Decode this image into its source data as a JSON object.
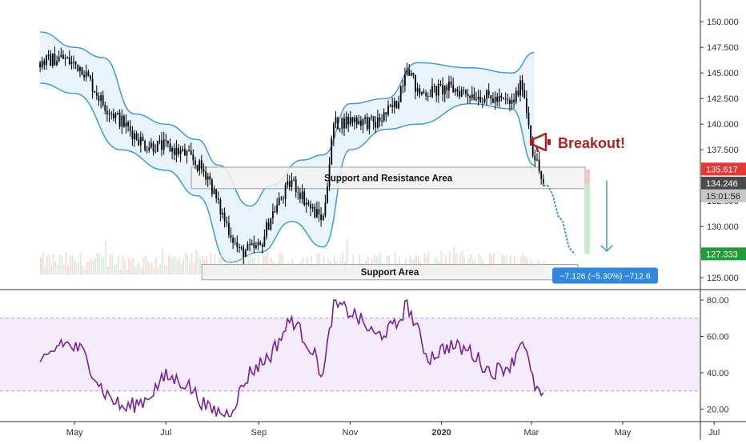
{
  "colors": {
    "up": "#000000",
    "down": "#000000",
    "bollinger": "#3d9be0",
    "bollinger_fill": "#e6f2fc",
    "rsi_line": "#7b1fa2",
    "rsi_band_fill": "#f5ecfb",
    "annotation_red": "#b71c1c",
    "projection": "#3d9be0",
    "target_box": "#2d88de",
    "tag_red": "#e53935",
    "tag_dark": "#4b4b4b",
    "tag_gray": "#c7c7c7",
    "tag_green": "#1e9e3a"
  },
  "annotations": {
    "breakout_label": "Breakout!",
    "breakout_icon": "megaphone-icon",
    "support_resistance_label": "Support and Resistance Area",
    "support_label": "Support Area",
    "measure_label": "−7.126 (−5.30%) −712.6"
  },
  "price_tags": {
    "upper": "135.617",
    "last": "134.246",
    "countdown": "15:01:56",
    "target": "127.333"
  },
  "chart_data": [
    {
      "type": "candlestick",
      "title": "",
      "xlabel": "",
      "ylabel": "",
      "x_ticks": [
        "May",
        "Jul",
        "Sep",
        "Nov",
        "2020",
        "Mar",
        "May",
        "Jul"
      ],
      "y_ticks": [
        "125.000",
        "127.500",
        "130.000",
        "132.500",
        "137.500",
        "140.000",
        "142.500",
        "145.000",
        "147.500",
        "150.000"
      ],
      "ylim": [
        124,
        151.5
      ],
      "price_path": [
        [
          "2019-04-08",
          146.0
        ],
        [
          "2019-04-22",
          146.5
        ],
        [
          "2019-05-06",
          145.5
        ],
        [
          "2019-05-20",
          142.0
        ],
        [
          "2019-06-03",
          140.0
        ],
        [
          "2019-06-17",
          138.0
        ],
        [
          "2019-07-01",
          137.8
        ],
        [
          "2019-07-15",
          137.0
        ],
        [
          "2019-07-29",
          135.0
        ],
        [
          "2019-08-05",
          132.0
        ],
        [
          "2019-08-19",
          127.5
        ],
        [
          "2019-09-02",
          128.0
        ],
        [
          "2019-09-09",
          131.0
        ],
        [
          "2019-09-23",
          134.5
        ],
        [
          "2019-10-07",
          131.5
        ],
        [
          "2019-10-14",
          130.8
        ],
        [
          "2019-10-21",
          140.0
        ],
        [
          "2019-11-04",
          140.5
        ],
        [
          "2019-11-18",
          140.0
        ],
        [
          "2019-12-02",
          142.0
        ],
        [
          "2019-12-09",
          146.0
        ],
        [
          "2019-12-16",
          143.0
        ],
        [
          "2020-01-06",
          143.5
        ],
        [
          "2020-01-20",
          143.0
        ],
        [
          "2020-02-03",
          142.5
        ],
        [
          "2020-02-17",
          142.0
        ],
        [
          "2020-02-24",
          144.0
        ],
        [
          "2020-03-02",
          137.5
        ],
        [
          "2020-03-09",
          134.0
        ]
      ],
      "bollinger_upper": [
        [
          "2019-04-08",
          149.0
        ],
        [
          "2019-05-01",
          147.5
        ],
        [
          "2019-05-20",
          146.5
        ],
        [
          "2019-06-10",
          141.0
        ],
        [
          "2019-07-01",
          140.0
        ],
        [
          "2019-07-22",
          138.5
        ],
        [
          "2019-08-05",
          136.0
        ],
        [
          "2019-08-26",
          132.0
        ],
        [
          "2019-09-09",
          134.0
        ],
        [
          "2019-09-30",
          136.5
        ],
        [
          "2019-10-14",
          137.0
        ],
        [
          "2019-11-01",
          142.0
        ],
        [
          "2019-11-25",
          142.5
        ],
        [
          "2019-12-16",
          146.0
        ],
        [
          "2020-01-20",
          145.5
        ],
        [
          "2020-02-17",
          145.0
        ],
        [
          "2020-03-03",
          147.0
        ]
      ],
      "bollinger_lower": [
        [
          "2019-04-08",
          144.0
        ],
        [
          "2019-05-01",
          143.0
        ],
        [
          "2019-06-01",
          137.5
        ],
        [
          "2019-07-01",
          135.5
        ],
        [
          "2019-07-22",
          133.0
        ],
        [
          "2019-08-12",
          126.5
        ],
        [
          "2019-09-02",
          127.5
        ],
        [
          "2019-09-23",
          130.5
        ],
        [
          "2019-10-14",
          128.0
        ],
        [
          "2019-11-01",
          137.5
        ],
        [
          "2019-11-25",
          139.5
        ],
        [
          "2019-12-16",
          140.0
        ],
        [
          "2020-01-20",
          142.0
        ],
        [
          "2020-02-17",
          141.5
        ],
        [
          "2020-03-03",
          136.0
        ]
      ],
      "support_resistance_zone": {
        "start": "2019-07-18",
        "end": "2020-04-06",
        "low": 133.7,
        "high": 135.8
      },
      "support_zone": {
        "start": "2019-07-25",
        "end": "2020-04-01",
        "low": 124.8,
        "high": 126.3
      },
      "projection_path": [
        [
          "2020-03-09",
          134.0
        ],
        [
          "2020-03-12",
          134.0
        ],
        [
          "2020-03-15",
          133.2
        ],
        [
          "2020-03-19",
          131.0
        ],
        [
          "2020-03-22",
          130.5
        ],
        [
          "2020-03-26",
          128.0
        ],
        [
          "2020-03-30",
          127.3
        ]
      ]
    },
    {
      "type": "line",
      "title": "",
      "xlabel": "",
      "ylabel": "",
      "y_ticks": [
        "20.00",
        "40.00",
        "60.00",
        "80.00"
      ],
      "ylim": [
        14,
        84
      ],
      "band": [
        30,
        70
      ],
      "rsi_path": [
        [
          "2019-04-08",
          43
        ],
        [
          "2019-04-22",
          57
        ],
        [
          "2019-05-06",
          52
        ],
        [
          "2019-05-20",
          30
        ],
        [
          "2019-06-03",
          20
        ],
        [
          "2019-06-17",
          25
        ],
        [
          "2019-07-01",
          38
        ],
        [
          "2019-07-15",
          34
        ],
        [
          "2019-07-29",
          20
        ],
        [
          "2019-08-12",
          17
        ],
        [
          "2019-08-26",
          40
        ],
        [
          "2019-09-09",
          50
        ],
        [
          "2019-09-23",
          70
        ],
        [
          "2019-10-07",
          52
        ],
        [
          "2019-10-14",
          38
        ],
        [
          "2019-10-21",
          78
        ],
        [
          "2019-11-04",
          72
        ],
        [
          "2019-11-18",
          60
        ],
        [
          "2019-12-02",
          66
        ],
        [
          "2019-12-09",
          78
        ],
        [
          "2019-12-23",
          48
        ],
        [
          "2020-01-06",
          55
        ],
        [
          "2020-01-20",
          52
        ],
        [
          "2020-02-03",
          40
        ],
        [
          "2020-02-17",
          45
        ],
        [
          "2020-02-24",
          60
        ],
        [
          "2020-03-02",
          35
        ],
        [
          "2020-03-09",
          25
        ]
      ]
    }
  ]
}
